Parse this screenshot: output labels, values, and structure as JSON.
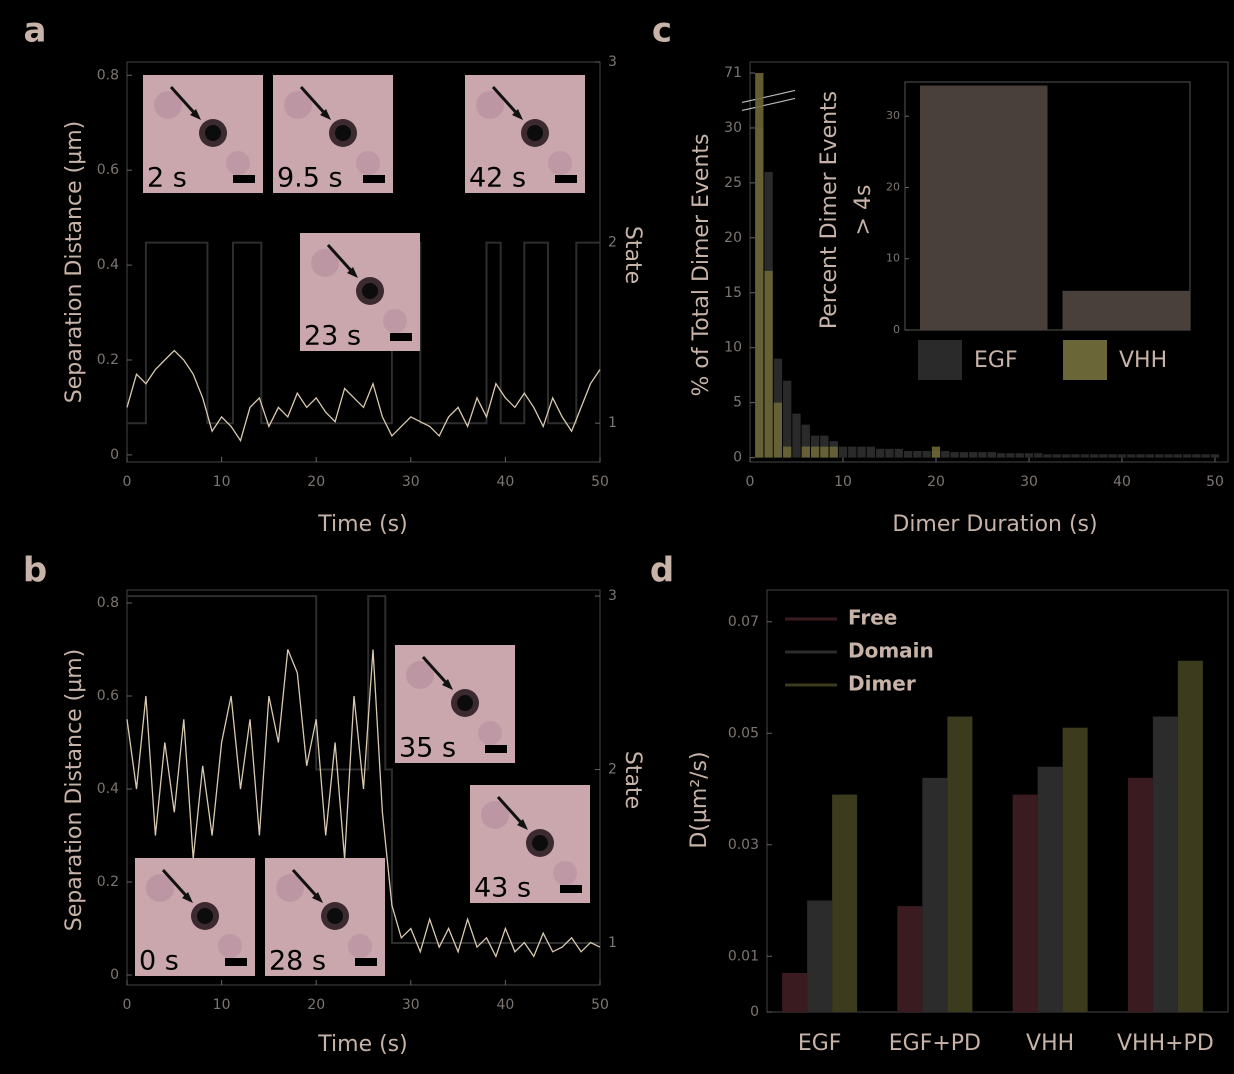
{
  "chart_data": [
    {
      "type": "line",
      "panel": "a",
      "xlabel": "Time (s)",
      "ylabel": "Separation Distance (µm)",
      "y2label": "State",
      "xlim": [
        0,
        50
      ],
      "xticks": [
        0,
        10,
        20,
        30,
        40,
        50
      ],
      "ylim": [
        -0.015,
        0.828
      ],
      "yticks": [
        0,
        0.2,
        0.4,
        0.6,
        0.8
      ],
      "y2lim": [
        0.785,
        3
      ],
      "y2ticks": [
        1,
        2,
        3
      ],
      "series": [
        {
          "color": "#d9c9b0",
          "x": [
            0,
            1,
            2,
            3,
            4,
            5,
            6,
            7,
            8,
            9,
            10,
            11,
            12,
            13,
            14,
            15,
            16,
            17,
            18,
            19,
            20,
            21,
            22,
            23,
            24,
            25,
            26,
            27,
            28,
            29,
            30,
            31,
            32,
            33,
            34,
            35,
            36,
            37,
            38,
            39,
            40,
            41,
            42,
            43,
            44,
            45,
            46,
            47,
            48,
            49,
            50
          ],
          "values": [
            0.1,
            0.17,
            0.15,
            0.18,
            0.2,
            0.22,
            0.2,
            0.17,
            0.12,
            0.05,
            0.08,
            0.06,
            0.03,
            0.1,
            0.12,
            0.06,
            0.1,
            0.08,
            0.13,
            0.1,
            0.12,
            0.09,
            0.07,
            0.14,
            0.12,
            0.1,
            0.15,
            0.08,
            0.04,
            0.06,
            0.08,
            0.07,
            0.06,
            0.04,
            0.08,
            0.1,
            0.06,
            0.12,
            0.08,
            0.15,
            0.12,
            0.1,
            0.13,
            0.1,
            0.06,
            0.12,
            0.08,
            0.05,
            0.1,
            0.15,
            0.18
          ]
        },
        {
          "color": "#2e2e2e",
          "axis": "y2",
          "x": [
            0,
            2,
            2,
            8.5,
            8.5,
            11.2,
            11.2,
            14.2,
            14.2,
            28,
            28,
            31,
            31,
            38,
            38,
            39.5,
            39.5,
            42,
            42,
            44.5,
            44.5,
            47.5,
            47.5,
            50
          ],
          "values": [
            1,
            1,
            2,
            2,
            1,
            1,
            2,
            2,
            1,
            1,
            2,
            2,
            1,
            1,
            2,
            2,
            1,
            1,
            2,
            2,
            1,
            1,
            2,
            2
          ]
        }
      ],
      "insets": [
        "2 s",
        "9.5 s",
        "42 s",
        "23 s"
      ]
    },
    {
      "type": "line",
      "panel": "b",
      "xlabel": "Time (s)",
      "ylabel": "Separation Distance (µm)",
      "y2label": "State",
      "xlim": [
        0,
        50
      ],
      "xticks": [
        0,
        10,
        20,
        30,
        40,
        50
      ],
      "ylim": [
        -0.0215,
        0.828
      ],
      "yticks": [
        0,
        0.2,
        0.4,
        0.6,
        0.8
      ],
      "y2lim": [
        0.758,
        3.035
      ],
      "y2ticks": [
        1,
        2,
        3
      ],
      "series": [
        {
          "color": "#d9c9b0",
          "x": [
            0,
            1,
            2,
            3,
            4,
            5,
            6,
            7,
            8,
            9,
            10,
            11,
            12,
            13,
            14,
            15,
            16,
            17,
            18,
            19,
            20,
            21,
            22,
            23,
            24,
            25,
            26,
            27,
            28,
            29,
            30,
            31,
            32,
            33,
            34,
            35,
            36,
            37,
            38,
            39,
            40,
            41,
            42,
            43,
            44,
            45,
            46,
            47,
            48,
            49,
            50
          ],
          "values": [
            0.55,
            0.4,
            0.6,
            0.3,
            0.5,
            0.35,
            0.55,
            0.25,
            0.45,
            0.3,
            0.5,
            0.6,
            0.4,
            0.55,
            0.3,
            0.6,
            0.5,
            0.7,
            0.65,
            0.45,
            0.55,
            0.3,
            0.5,
            0.25,
            0.6,
            0.4,
            0.7,
            0.35,
            0.15,
            0.08,
            0.1,
            0.05,
            0.12,
            0.06,
            0.1,
            0.05,
            0.12,
            0.06,
            0.08,
            0.04,
            0.1,
            0.05,
            0.07,
            0.04,
            0.09,
            0.05,
            0.06,
            0.08,
            0.05,
            0.07,
            0.06
          ]
        },
        {
          "color": "#2e2e2e",
          "axis": "y2",
          "x": [
            0,
            20,
            20,
            25.5,
            25.5,
            27.3,
            27.3,
            28,
            28,
            50
          ],
          "values": [
            3,
            3,
            2,
            2,
            3,
            3,
            2,
            2,
            1,
            1
          ]
        }
      ],
      "insets": [
        "35 s",
        "43 s",
        "0 s",
        "28 s"
      ]
    },
    {
      "type": "histogram",
      "panel": "c",
      "xlabel": "Dimer Duration (s)",
      "ylabel": "% of Total Dimer Events",
      "xlim": [
        0,
        51.4
      ],
      "xticks": [
        0,
        10,
        20,
        30,
        40,
        50
      ],
      "ylim": [
        -0.4,
        72
      ],
      "ybreak": [
        32,
        68
      ],
      "yticks": [
        0,
        5,
        10,
        15,
        20,
        25,
        30,
        71
      ],
      "bins": [
        0.5,
        1.5,
        2.5,
        3.5,
        4.5,
        5.5,
        6.5,
        7.5,
        8.5,
        9.5,
        10.5,
        11.5,
        12.5,
        13.5,
        14.5,
        15.5,
        16.5,
        17.5,
        18.5,
        19.5,
        20.5,
        21.5,
        22.5,
        23.5,
        24.5,
        25.5,
        26.5,
        27.5,
        28.5,
        29.5,
        30.5,
        31.5,
        32.5,
        33.5,
        34.5,
        35.5,
        36.5,
        37.5,
        38.5,
        39.5,
        40.5,
        41.5,
        42.5,
        43.5,
        44.5,
        45.5,
        46.5,
        47.5,
        48.5,
        49.5,
        50.5
      ],
      "series": [
        {
          "name": "EGF",
          "color": "#2a2a2a",
          "values": [
            30,
            26,
            9,
            7,
            4,
            3,
            2,
            2,
            1.5,
            1,
            1,
            1,
            1,
            0.8,
            0.8,
            0.8,
            0.6,
            0.6,
            0.6,
            0.6,
            0.6,
            0.5,
            0.5,
            0.5,
            0.5,
            0.5,
            0.4,
            0.4,
            0.4,
            0.4,
            0.4,
            0.3,
            0.3,
            0.3,
            0.3,
            0.3,
            0.3,
            0.3,
            0.3,
            0.3,
            0.3,
            0.3,
            0.3,
            0.3,
            0.3,
            0.3,
            0.3,
            0.3,
            0.3,
            0.3
          ]
        },
        {
          "name": "VHH",
          "color": "#6b6637",
          "values": [
            71,
            17,
            5,
            1,
            0,
            1,
            1,
            1,
            1,
            0,
            0,
            0,
            0,
            0,
            0,
            0,
            0,
            0,
            0,
            1,
            0,
            0,
            0,
            0,
            0,
            0,
            0,
            0,
            0,
            0,
            0,
            0,
            0,
            0,
            0,
            0,
            0,
            0,
            0,
            0,
            0,
            0,
            0,
            0,
            0,
            0,
            0,
            0,
            0,
            0
          ]
        }
      ],
      "inset": {
        "type": "bar",
        "ylabel": [
          "Percent Dimer Events",
          "> 4s"
        ],
        "categories": [
          "EGF",
          "VHH"
        ],
        "values": [
          34.3,
          5.5
        ],
        "color": "#4a403b",
        "ylim": [
          0,
          34.8
        ],
        "yticks": [
          0,
          10,
          20,
          30
        ]
      }
    },
    {
      "type": "bar",
      "panel": "d",
      "ylabel": "D(µm²/s)",
      "categories": [
        "EGF",
        "EGF+PD",
        "VHH",
        "VHH+PD"
      ],
      "ylim": [
        0,
        0.0757
      ],
      "yticks": [
        0,
        0.01,
        0.03,
        0.05,
        0.07
      ],
      "legend": "upper left",
      "series": [
        {
          "name": "Free",
          "color": "#3a1c20",
          "values": [
            0.007,
            0.019,
            0.039,
            0.042
          ]
        },
        {
          "name": "Domain",
          "color": "#2c2c2c",
          "values": [
            0.02,
            0.042,
            0.044,
            0.053
          ]
        },
        {
          "name": "Dimer",
          "color": "#3c3b1e",
          "values": [
            0.039,
            0.053,
            0.051,
            0.063
          ]
        }
      ]
    }
  ]
}
